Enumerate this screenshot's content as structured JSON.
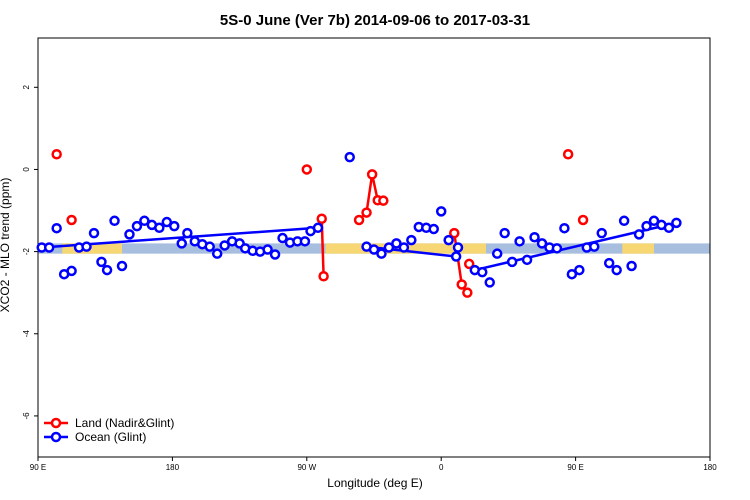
{
  "chart_data": {
    "type": "line",
    "title": "5S-0 June (Ver 7b)   2014-09-06 to 2017-03-31",
    "xlabel": "Longitude (deg E)",
    "ylabel": "XCO2 - MLO trend (ppm)",
    "xlim": [
      90,
      450
    ],
    "ylim": [
      -7.0,
      3.2
    ],
    "x_ticks": [
      {
        "value": 90,
        "label": "90 E"
      },
      {
        "value": 162,
        "label": "180"
      },
      {
        "value": 234,
        "label": "90 W"
      },
      {
        "value": 306,
        "label": "0"
      },
      {
        "value": 378,
        "label": "90 E"
      },
      {
        "value": 450,
        "label": "180"
      }
    ],
    "y_ticks": [
      {
        "value": 2,
        "label": "2"
      },
      {
        "value": 0,
        "label": "0"
      },
      {
        "value": -2,
        "label": "-2"
      },
      {
        "value": -4,
        "label": "-4"
      },
      {
        "value": -6,
        "label": "-6"
      }
    ],
    "band": {
      "ymin": -2.05,
      "ymax": -1.8,
      "color": "#a8bede",
      "land_color": "#f7d774",
      "land_ranges": [
        [
          103,
          135
        ],
        [
          244,
          330
        ],
        [
          403,
          420
        ]
      ]
    },
    "series": [
      {
        "name": "Land (Nadir&Glint)",
        "color": "#ff0000",
        "points": [
          [
            100,
            0.37
          ],
          [
            108,
            -1.23
          ],
          [
            234,
            0.0
          ],
          [
            242,
            -1.2
          ],
          [
            243,
            -2.6
          ],
          [
            262,
            -1.23
          ],
          [
            266,
            -1.05
          ],
          [
            269,
            -0.12
          ],
          [
            272,
            -0.75
          ],
          [
            275,
            -0.76
          ],
          [
            321,
            -2.3
          ],
          [
            313,
            -1.55
          ],
          [
            317,
            -2.8
          ],
          [
            320,
            -3.0
          ],
          [
            374,
            0.37
          ],
          [
            382,
            -1.23
          ]
        ],
        "segments": [
          [
            3,
            4
          ],
          [
            5,
            6,
            7,
            8,
            9
          ],
          [
            11,
            12,
            13
          ]
        ]
      },
      {
        "name": "Ocean (Glint)",
        "color": "#0000ff",
        "points": [
          [
            92,
            -1.9
          ],
          [
            96,
            -1.9
          ],
          [
            100,
            -1.43
          ],
          [
            104,
            -2.55
          ],
          [
            108,
            -2.47
          ],
          [
            112,
            -1.9
          ],
          [
            116,
            -1.88
          ],
          [
            120,
            -1.55
          ],
          [
            124,
            -2.25
          ],
          [
            127,
            -2.45
          ],
          [
            131,
            -1.25
          ],
          [
            135,
            -2.35
          ],
          [
            139,
            -1.58
          ],
          [
            143,
            -1.38
          ],
          [
            147,
            -1.25
          ],
          [
            151,
            -1.35
          ],
          [
            155,
            -1.42
          ],
          [
            159,
            -1.28
          ],
          [
            163,
            -1.38
          ],
          [
            167,
            -1.8
          ],
          [
            170,
            -1.55
          ],
          [
            174,
            -1.75
          ],
          [
            178,
            -1.82
          ],
          [
            182,
            -1.88
          ],
          [
            186,
            -2.05
          ],
          [
            190,
            -1.85
          ],
          [
            194,
            -1.75
          ],
          [
            198,
            -1.8
          ],
          [
            201,
            -1.92
          ],
          [
            205,
            -1.98
          ],
          [
            209,
            -2.0
          ],
          [
            213,
            -1.95
          ],
          [
            217,
            -2.07
          ],
          [
            221,
            -1.67
          ],
          [
            225,
            -1.78
          ],
          [
            229,
            -1.75
          ],
          [
            233,
            -1.75
          ],
          [
            236,
            -1.5
          ],
          [
            240,
            -1.42
          ],
          [
            257,
            0.3
          ],
          [
            266,
            -1.88
          ],
          [
            270,
            -1.95
          ],
          [
            274,
            -2.05
          ],
          [
            278,
            -1.9
          ],
          [
            282,
            -1.8
          ],
          [
            286,
            -1.9
          ],
          [
            290,
            -1.72
          ],
          [
            294,
            -1.4
          ],
          [
            298,
            -1.42
          ],
          [
            302,
            -1.45
          ],
          [
            306,
            -1.02
          ],
          [
            310,
            -1.72
          ],
          [
            314,
            -2.12
          ],
          [
            315,
            -1.9
          ],
          [
            324,
            -2.45
          ],
          [
            328,
            -2.5
          ],
          [
            332,
            -2.75
          ],
          [
            336,
            -2.05
          ],
          [
            340,
            -1.55
          ],
          [
            344,
            -2.25
          ],
          [
            348,
            -1.75
          ],
          [
            352,
            -2.2
          ],
          [
            356,
            -1.65
          ],
          [
            360,
            -1.8
          ],
          [
            364,
            -1.9
          ],
          [
            368,
            -1.92
          ],
          [
            372,
            -1.43
          ],
          [
            376,
            -2.55
          ],
          [
            380,
            -2.45
          ],
          [
            384,
            -1.9
          ],
          [
            388,
            -1.88
          ],
          [
            392,
            -1.55
          ],
          [
            396,
            -2.28
          ],
          [
            400,
            -2.45
          ],
          [
            404,
            -1.25
          ],
          [
            408,
            -2.35
          ],
          [
            412,
            -1.58
          ],
          [
            416,
            -1.38
          ],
          [
            420,
            -1.25
          ],
          [
            424,
            -1.35
          ],
          [
            428,
            -1.42
          ],
          [
            432,
            -1.3
          ]
        ],
        "segments": [
          [
            0,
            38
          ],
          [
            40,
            52
          ],
          [
            54,
            81
          ]
        ]
      }
    ],
    "legend": {
      "position": "bottom-left",
      "entries": [
        "Land (Nadir&Glint)",
        "Ocean (Glint)"
      ]
    }
  }
}
